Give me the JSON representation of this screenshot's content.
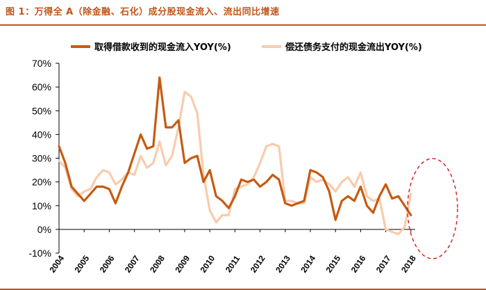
{
  "header": {
    "title": "图 1：万得全 A（除金融、石化）成分股现金流入、流出同比增速"
  },
  "chart_data": {
    "type": "line",
    "title": "图 1：万得全 A（除金融、石化）成分股现金流入、流出同比增速",
    "xlabel": "",
    "ylabel": "",
    "ylim": [
      -10,
      70
    ],
    "y_ticks": [
      -10,
      0,
      10,
      20,
      30,
      40,
      50,
      60,
      70
    ],
    "y_tick_labels": [
      "-10%",
      "0%",
      "10%",
      "20%",
      "30%",
      "40%",
      "50%",
      "60%",
      "70%"
    ],
    "x_tick_labels": [
      "2004",
      "2005",
      "2006",
      "2007",
      "2008",
      "2009",
      "2010",
      "2011",
      "2012",
      "2013",
      "2014",
      "2015",
      "2016",
      "2017",
      "2018"
    ],
    "x_start": 2004,
    "step": 0.25,
    "grid": false,
    "legend_position": "top",
    "annotation": "red dashed ellipse highlighting 2017–2018",
    "series": [
      {
        "name": "取得借款收到的现金流入YOY(%)",
        "color": "#c55a11",
        "values": [
          35,
          28,
          18,
          15,
          12,
          15,
          18,
          18,
          17,
          11,
          18,
          24,
          32,
          40,
          34,
          35,
          64,
          43,
          43,
          46,
          28,
          30,
          31,
          20,
          25,
          14,
          12,
          9,
          14,
          21,
          20,
          21,
          18,
          20,
          23,
          21,
          11,
          10,
          11,
          12,
          25,
          24,
          22,
          16,
          4,
          12,
          14,
          12,
          18,
          10,
          7,
          14,
          19,
          13,
          14,
          10,
          6
        ]
      },
      {
        "name": "偿还债务支付的现金流出YOY(%)",
        "color": "#f8cbad",
        "values": [
          29,
          26,
          17,
          14,
          16,
          17,
          22,
          25,
          24,
          19,
          21,
          24,
          23,
          31,
          26,
          28,
          37,
          27,
          31,
          43,
          58,
          56,
          49,
          23,
          8,
          3,
          6,
          6,
          17,
          18,
          19,
          22,
          28,
          35,
          36,
          35,
          12,
          12,
          11,
          11,
          22,
          20,
          21,
          19,
          16,
          20,
          22,
          18,
          24,
          14,
          12,
          13,
          0,
          -1,
          -2,
          1,
          15
        ]
      }
    ]
  }
}
